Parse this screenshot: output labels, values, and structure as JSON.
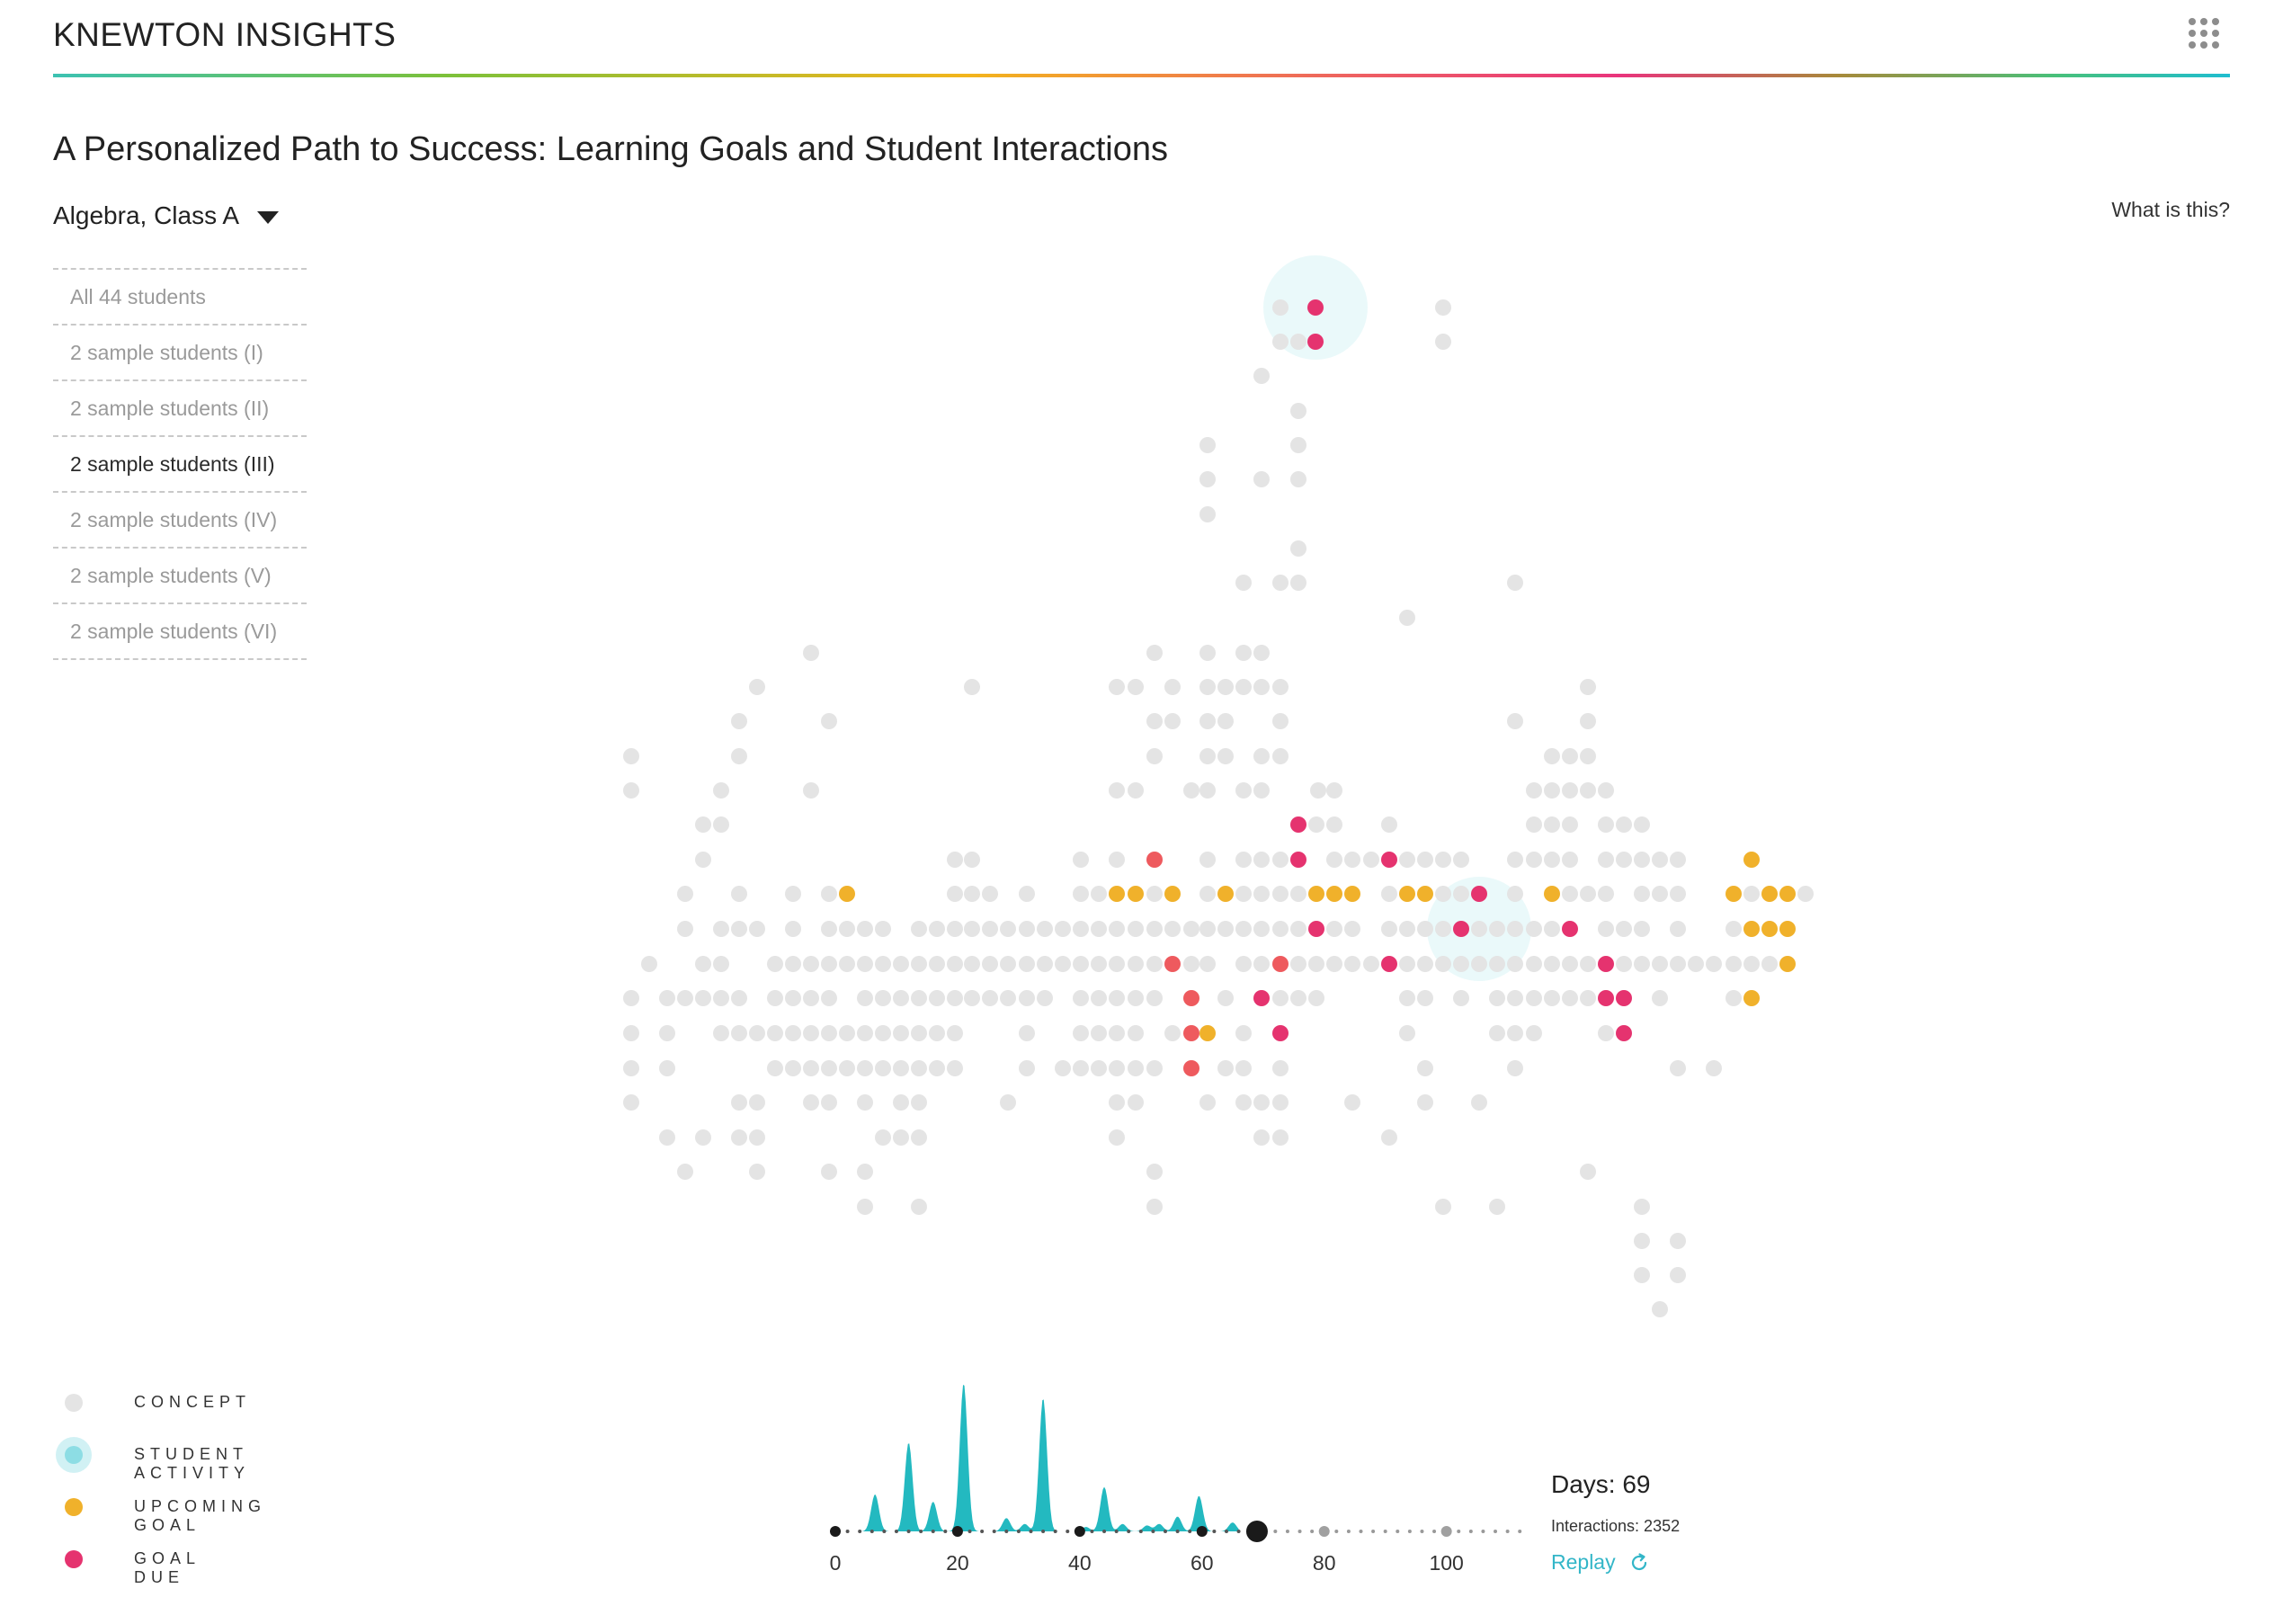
{
  "app": {
    "brand": "KNEWTON INSIGHTS",
    "menu_icon": "grid-menu-icon",
    "page_title": "A Personalized Path to Success: Learning Goals and Student Interactions",
    "class_selector": "Algebra, Class A",
    "help_link": "What is this?"
  },
  "students": {
    "items": [
      "All 44 students",
      "2 sample students (I)",
      "2 sample students (II)",
      "2 sample students (III)",
      "2 sample students (IV)",
      "2 sample students (V)",
      "2 sample students (VI)"
    ],
    "active_index": 3
  },
  "legend": [
    {
      "label": "CONCEPT",
      "color": "#e4e4e4"
    },
    {
      "label": "STUDENT ACTIVITY",
      "color": "#8ddde4"
    },
    {
      "label": "UPCOMING GOAL",
      "color": "#f0b12b"
    },
    {
      "label": "GOAL DUE",
      "color": "#e5336f"
    }
  ],
  "colors": {
    "concept": "#e4e4e4",
    "activity": "#8ddde4",
    "upcoming": "#f0b12b",
    "due": "#e5336f",
    "due_light": "#ee5a5e",
    "timeline": "#23b9c0",
    "accent": "#33b6c8"
  },
  "timeline": {
    "ticks": [
      "0",
      "20",
      "40",
      "60",
      "80",
      "100"
    ],
    "tick_values": [
      0,
      20,
      40,
      60,
      80,
      100
    ],
    "max_day": 113,
    "current_day": 69,
    "activity_peaks": [
      {
        "day": 6.5,
        "height": 0.25
      },
      {
        "day": 12,
        "height": 0.6
      },
      {
        "day": 16,
        "height": 0.2
      },
      {
        "day": 21,
        "height": 1.0
      },
      {
        "day": 28,
        "height": 0.09
      },
      {
        "day": 31,
        "height": 0.05
      },
      {
        "day": 34,
        "height": 0.9
      },
      {
        "day": 41,
        "height": 0.03
      },
      {
        "day": 44,
        "height": 0.3
      },
      {
        "day": 47,
        "height": 0.05
      },
      {
        "day": 51,
        "height": 0.04
      },
      {
        "day": 53,
        "height": 0.05
      },
      {
        "day": 56,
        "height": 0.1
      },
      {
        "day": 59.5,
        "height": 0.24
      },
      {
        "day": 65,
        "height": 0.06
      }
    ]
  },
  "stats": {
    "days": "Days: 69",
    "interactions": "Interactions: 2352",
    "replay": "Replay"
  }
}
